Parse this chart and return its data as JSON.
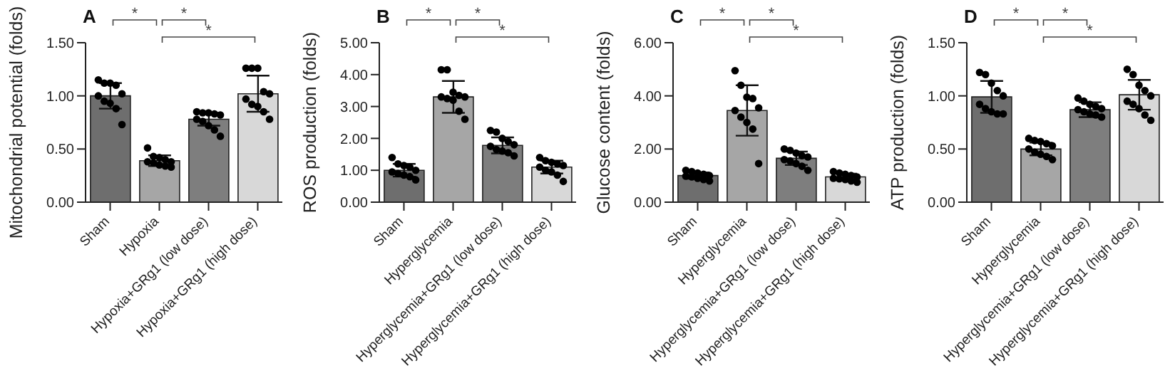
{
  "chart_data": [
    {
      "type": "bar",
      "title": "A",
      "ylabel": "Mitochondrial potential (folds)",
      "categories": [
        "Sham",
        "Hypoxia",
        "Hypoxia+GRg1 (low dose)",
        "Hypoxia+GRg1 (high dose)"
      ],
      "ylim": [
        0,
        1.5
      ],
      "yticks": [
        {
          "value": 0,
          "label": "0.00"
        },
        {
          "value": 0.5,
          "label": "0.50"
        },
        {
          "value": 1,
          "label": "1.00"
        },
        {
          "value": 1.5,
          "label": "1.50"
        }
      ],
      "grid": false,
      "legend": false,
      "annotations": [
        "*",
        "*",
        "*"
      ],
      "series": [
        {
          "type": "bar",
          "colors": [
            "#6e6e6e",
            "#a6a6a6",
            "#7e7e7e",
            "#d8d8d8"
          ],
          "values": [
            1.0,
            0.39,
            0.78,
            1.02
          ],
          "errors": [
            0.12,
            0.05,
            0.06,
            0.17
          ]
        },
        {
          "type": "scatter",
          "color": "#000000",
          "marker": "circle",
          "x": [
            "Sham",
            "Sham",
            "Sham",
            "Sham",
            "Sham",
            "Sham",
            "Sham",
            "Sham",
            "Sham",
            "Sham",
            "Hypoxia",
            "Hypoxia",
            "Hypoxia",
            "Hypoxia",
            "Hypoxia",
            "Hypoxia",
            "Hypoxia",
            "Hypoxia",
            "Hypoxia",
            "Hypoxia",
            "Hypoxia+GRg1 (low dose)",
            "Hypoxia+GRg1 (low dose)",
            "Hypoxia+GRg1 (low dose)",
            "Hypoxia+GRg1 (low dose)",
            "Hypoxia+GRg1 (low dose)",
            "Hypoxia+GRg1 (low dose)",
            "Hypoxia+GRg1 (low dose)",
            "Hypoxia+GRg1 (low dose)",
            "Hypoxia+GRg1 (low dose)",
            "Hypoxia+GRg1 (low dose)",
            "Hypoxia+GRg1 (high dose)",
            "Hypoxia+GRg1 (high dose)",
            "Hypoxia+GRg1 (high dose)",
            "Hypoxia+GRg1 (high dose)",
            "Hypoxia+GRg1 (high dose)",
            "Hypoxia+GRg1 (high dose)",
            "Hypoxia+GRg1 (high dose)",
            "Hypoxia+GRg1 (high dose)",
            "Hypoxia+GRg1 (high dose)",
            "Hypoxia+GRg1 (high dose)"
          ],
          "values": [
            1.15,
            1.12,
            1.12,
            1.1,
            1.02,
            1.0,
            0.95,
            0.93,
            0.88,
            0.73,
            0.51,
            0.43,
            0.42,
            0.4,
            0.38,
            0.38,
            0.37,
            0.35,
            0.34,
            0.33,
            0.85,
            0.84,
            0.84,
            0.83,
            0.82,
            0.78,
            0.76,
            0.72,
            0.68,
            0.62,
            1.26,
            1.26,
            1.26,
            1.04,
            1.02,
            0.97,
            0.92,
            0.9,
            0.85,
            0.78
          ]
        }
      ]
    },
    {
      "type": "bar",
      "title": "B",
      "ylabel": "ROS production (folds)",
      "categories": [
        "Sham",
        "Hyperglycemia",
        "Hyperglycemia+GRg1 (low dose)",
        "Hyperglycemia+GRg1 (high dose)"
      ],
      "ylim": [
        0,
        5
      ],
      "yticks": [
        {
          "value": 0,
          "label": "0.00"
        },
        {
          "value": 1,
          "label": "1.00"
        },
        {
          "value": 2,
          "label": "2.00"
        },
        {
          "value": 3,
          "label": "3.00"
        },
        {
          "value": 4,
          "label": "4.00"
        },
        {
          "value": 5,
          "label": "5.00"
        }
      ],
      "grid": false,
      "legend": false,
      "annotations": [
        "*",
        "*",
        "*"
      ],
      "series": [
        {
          "type": "bar",
          "colors": [
            "#6e6e6e",
            "#a6a6a6",
            "#7e7e7e",
            "#d8d8d8"
          ],
          "values": [
            1.0,
            3.3,
            1.78,
            1.1
          ],
          "errors": [
            0.2,
            0.5,
            0.25,
            0.2
          ]
        },
        {
          "type": "scatter",
          "color": "#000000",
          "marker": "circle",
          "x": [
            "Sham",
            "Sham",
            "Sham",
            "Sham",
            "Sham",
            "Sham",
            "Sham",
            "Sham",
            "Sham",
            "Sham",
            "Hyperglycemia",
            "Hyperglycemia",
            "Hyperglycemia",
            "Hyperglycemia",
            "Hyperglycemia",
            "Hyperglycemia",
            "Hyperglycemia",
            "Hyperglycemia",
            "Hyperglycemia",
            "Hyperglycemia",
            "Hyperglycemia+GRg1 (low dose)",
            "Hyperglycemia+GRg1 (low dose)",
            "Hyperglycemia+GRg1 (low dose)",
            "Hyperglycemia+GRg1 (low dose)",
            "Hyperglycemia+GRg1 (low dose)",
            "Hyperglycemia+GRg1 (low dose)",
            "Hyperglycemia+GRg1 (low dose)",
            "Hyperglycemia+GRg1 (low dose)",
            "Hyperglycemia+GRg1 (low dose)",
            "Hyperglycemia+GRg1 (low dose)",
            "Hyperglycemia+GRg1 (high dose)",
            "Hyperglycemia+GRg1 (high dose)",
            "Hyperglycemia+GRg1 (high dose)",
            "Hyperglycemia+GRg1 (high dose)",
            "Hyperglycemia+GRg1 (high dose)",
            "Hyperglycemia+GRg1 (high dose)",
            "Hyperglycemia+GRg1 (high dose)",
            "Hyperglycemia+GRg1 (high dose)",
            "Hyperglycemia+GRg1 (high dose)",
            "Hyperglycemia+GRg1 (high dose)"
          ],
          "values": [
            1.4,
            1.2,
            1.15,
            1.1,
            1.0,
            0.95,
            0.9,
            0.85,
            0.8,
            0.7,
            4.15,
            4.15,
            3.45,
            3.35,
            3.3,
            3.3,
            3.25,
            3.2,
            2.85,
            2.6,
            2.25,
            2.2,
            2.0,
            1.9,
            1.8,
            1.75,
            1.65,
            1.6,
            1.55,
            1.45,
            1.4,
            1.3,
            1.25,
            1.2,
            1.15,
            1.1,
            1.0,
            0.95,
            0.85,
            0.65
          ]
        }
      ]
    },
    {
      "type": "bar",
      "title": "C",
      "ylabel": "Glucose content (folds)",
      "categories": [
        "Sham",
        "Hyperglycemia",
        "Hyperglycemia+GRg1 (low dose)",
        "Hyperglycemia+GRg1 (high dose)"
      ],
      "ylim": [
        0,
        6
      ],
      "yticks": [
        {
          "value": 0,
          "label": "0.00"
        },
        {
          "value": 2,
          "label": "2.00"
        },
        {
          "value": 4,
          "label": "4.00"
        },
        {
          "value": 6,
          "label": "6.00"
        }
      ],
      "grid": false,
      "legend": false,
      "annotations": [
        "*",
        "*",
        "*"
      ],
      "series": [
        {
          "type": "bar",
          "colors": [
            "#6e6e6e",
            "#a6a6a6",
            "#7e7e7e",
            "#d8d8d8"
          ],
          "values": [
            1.0,
            3.45,
            1.65,
            0.95
          ],
          "errors": [
            0.12,
            0.95,
            0.25,
            0.12
          ]
        },
        {
          "type": "scatter",
          "color": "#000000",
          "marker": "circle",
          "x": [
            "Sham",
            "Sham",
            "Sham",
            "Sham",
            "Sham",
            "Sham",
            "Sham",
            "Sham",
            "Sham",
            "Sham",
            "Hyperglycemia",
            "Hyperglycemia",
            "Hyperglycemia",
            "Hyperglycemia",
            "Hyperglycemia",
            "Hyperglycemia",
            "Hyperglycemia",
            "Hyperglycemia",
            "Hyperglycemia",
            "Hyperglycemia",
            "Hyperglycemia+GRg1 (low dose)",
            "Hyperglycemia+GRg1 (low dose)",
            "Hyperglycemia+GRg1 (low dose)",
            "Hyperglycemia+GRg1 (low dose)",
            "Hyperglycemia+GRg1 (low dose)",
            "Hyperglycemia+GRg1 (low dose)",
            "Hyperglycemia+GRg1 (low dose)",
            "Hyperglycemia+GRg1 (low dose)",
            "Hyperglycemia+GRg1 (low dose)",
            "Hyperglycemia+GRg1 (low dose)",
            "Hyperglycemia+GRg1 (high dose)",
            "Hyperglycemia+GRg1 (high dose)",
            "Hyperglycemia+GRg1 (high dose)",
            "Hyperglycemia+GRg1 (high dose)",
            "Hyperglycemia+GRg1 (high dose)",
            "Hyperglycemia+GRg1 (high dose)",
            "Hyperglycemia+GRg1 (high dose)",
            "Hyperglycemia+GRg1 (high dose)",
            "Hyperglycemia+GRg1 (high dose)",
            "Hyperglycemia+GRg1 (high dose)"
          ],
          "values": [
            1.2,
            1.15,
            1.1,
            1.05,
            1.0,
            0.98,
            0.95,
            0.9,
            0.85,
            0.8,
            4.95,
            4.4,
            3.95,
            3.9,
            3.55,
            3.45,
            3.2,
            3.0,
            2.75,
            1.45,
            2.0,
            1.95,
            1.85,
            1.75,
            1.7,
            1.6,
            1.55,
            1.45,
            1.35,
            1.2,
            1.15,
            1.1,
            1.05,
            1.0,
            0.95,
            0.9,
            0.88,
            0.85,
            0.8,
            0.75
          ]
        }
      ]
    },
    {
      "type": "bar",
      "title": "D",
      "ylabel": "ATP production (folds)",
      "categories": [
        "Sham",
        "Hyperglycemia",
        "Hyperglycemia+GRg1 (low dose)",
        "Hyperglycemia+GRg1 (high dose)"
      ],
      "ylim": [
        0,
        1.5
      ],
      "yticks": [
        {
          "value": 0,
          "label": "0.00"
        },
        {
          "value": 0.5,
          "label": "0.50"
        },
        {
          "value": 1,
          "label": "1.00"
        },
        {
          "value": 1.5,
          "label": "1.50"
        }
      ],
      "grid": false,
      "legend": false,
      "annotations": [
        "*",
        "*",
        "*"
      ],
      "series": [
        {
          "type": "bar",
          "colors": [
            "#6e6e6e",
            "#a6a6a6",
            "#7e7e7e",
            "#d8d8d8"
          ],
          "values": [
            0.99,
            0.5,
            0.87,
            1.01
          ],
          "errors": [
            0.15,
            0.06,
            0.07,
            0.14
          ]
        },
        {
          "type": "scatter",
          "color": "#000000",
          "marker": "circle",
          "x": [
            "Sham",
            "Sham",
            "Sham",
            "Sham",
            "Sham",
            "Sham",
            "Sham",
            "Sham",
            "Sham",
            "Sham",
            "Hyperglycemia",
            "Hyperglycemia",
            "Hyperglycemia",
            "Hyperglycemia",
            "Hyperglycemia",
            "Hyperglycemia",
            "Hyperglycemia",
            "Hyperglycemia",
            "Hyperglycemia",
            "Hyperglycemia",
            "Hyperglycemia+GRg1 (low dose)",
            "Hyperglycemia+GRg1 (low dose)",
            "Hyperglycemia+GRg1 (low dose)",
            "Hyperglycemia+GRg1 (low dose)",
            "Hyperglycemia+GRg1 (low dose)",
            "Hyperglycemia+GRg1 (low dose)",
            "Hyperglycemia+GRg1 (low dose)",
            "Hyperglycemia+GRg1 (low dose)",
            "Hyperglycemia+GRg1 (low dose)",
            "Hyperglycemia+GRg1 (low dose)",
            "Hyperglycemia+GRg1 (high dose)",
            "Hyperglycemia+GRg1 (high dose)",
            "Hyperglycemia+GRg1 (high dose)",
            "Hyperglycemia+GRg1 (high dose)",
            "Hyperglycemia+GRg1 (high dose)",
            "Hyperglycemia+GRg1 (high dose)",
            "Hyperglycemia+GRg1 (high dose)",
            "Hyperglycemia+GRg1 (high dose)",
            "Hyperglycemia+GRg1 (high dose)",
            "Hyperglycemia+GRg1 (high dose)"
          ],
          "values": [
            1.22,
            1.2,
            1.12,
            1.05,
            1.0,
            0.92,
            0.88,
            0.85,
            0.83,
            0.83,
            0.6,
            0.58,
            0.57,
            0.55,
            0.53,
            0.5,
            0.47,
            0.45,
            0.43,
            0.4,
            0.98,
            0.95,
            0.92,
            0.9,
            0.88,
            0.87,
            0.85,
            0.83,
            0.82,
            0.8,
            1.25,
            1.2,
            1.1,
            1.05,
            1.0,
            0.95,
            0.92,
            0.88,
            0.82,
            0.77
          ]
        }
      ]
    }
  ]
}
